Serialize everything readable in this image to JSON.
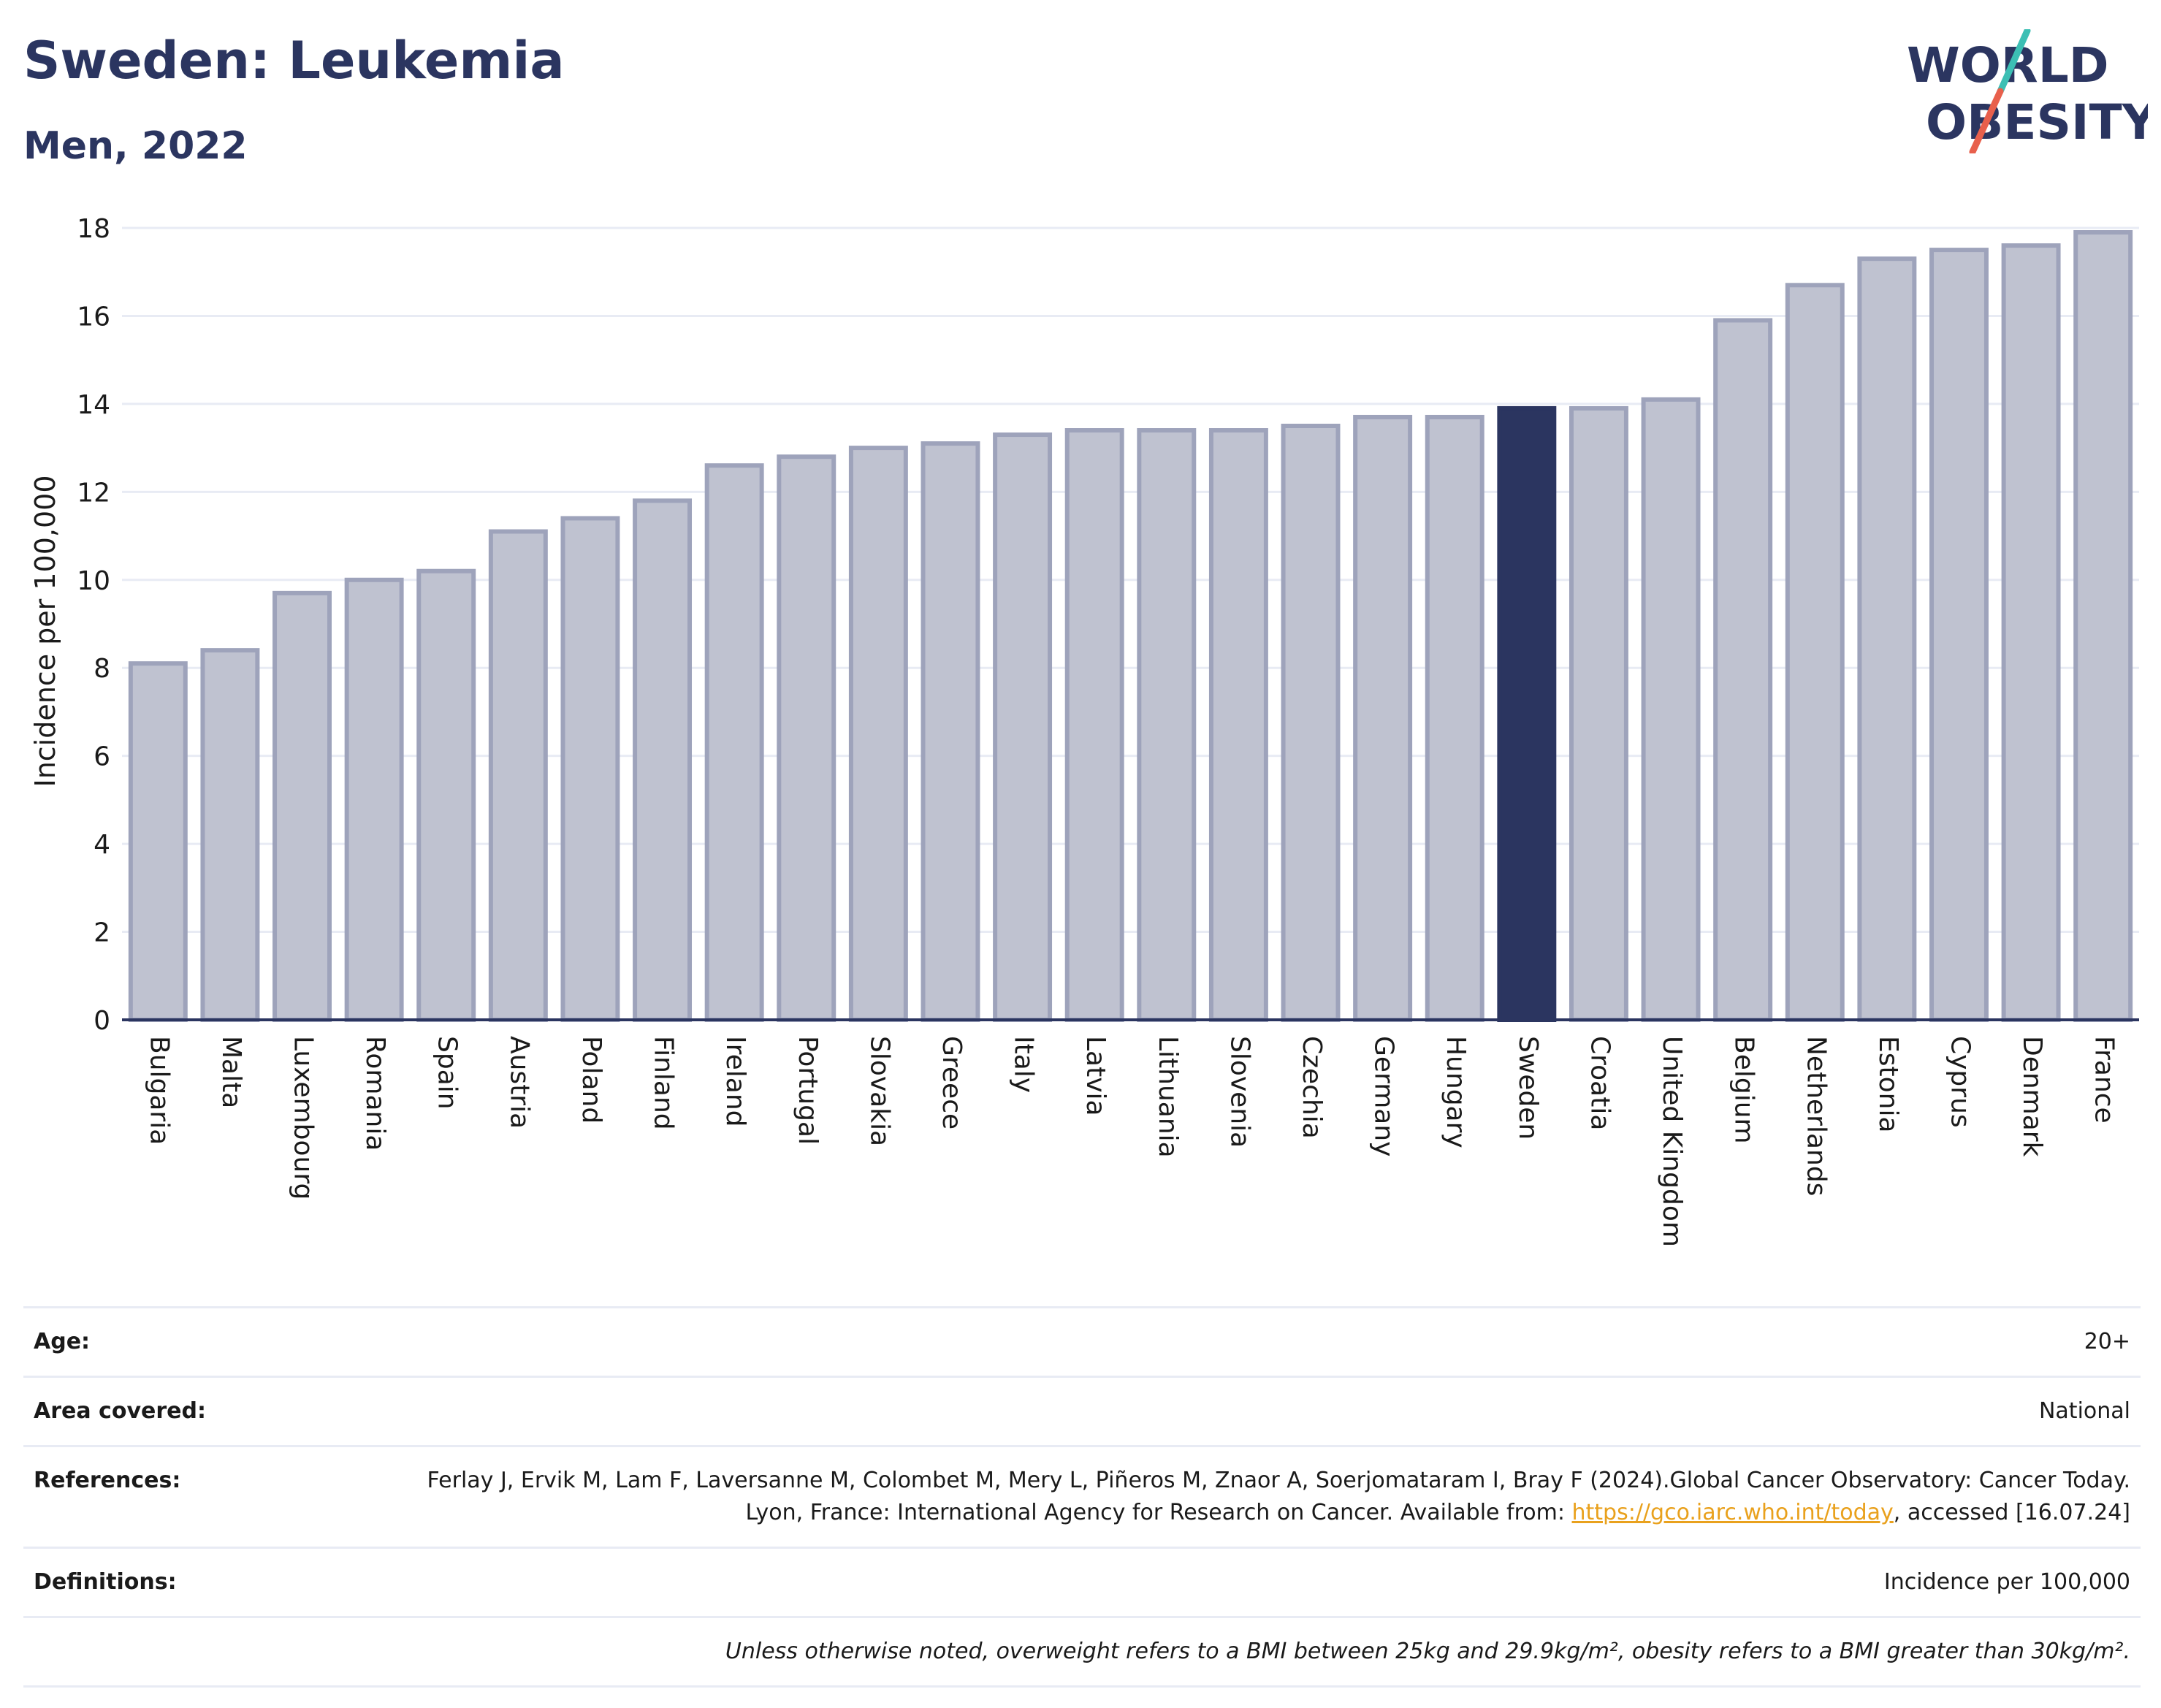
{
  "header": {
    "title": "Sweden: Leukemia",
    "subtitle": "Men, 2022"
  },
  "logo": {
    "line1": "WORLD",
    "line2": "OBESITY",
    "colors": {
      "text": "#2b3560",
      "slash_top": "#3cbfb4",
      "slash_bottom": "#e8604c"
    }
  },
  "chart_data": {
    "type": "bar",
    "ylabel": "Incidence per 100,000",
    "ylim": [
      0,
      18
    ],
    "yticks": [
      0,
      2,
      4,
      6,
      8,
      10,
      12,
      14,
      16,
      18
    ],
    "grid": true,
    "highlight": "Sweden",
    "colors": {
      "bar": "#bfc2d0",
      "bar_edge": "#9ea3bb",
      "highlight": "#2b3560",
      "grid": "#e8ebf4"
    },
    "categories": [
      "Bulgaria",
      "Malta",
      "Luxembourg",
      "Romania",
      "Spain",
      "Austria",
      "Poland",
      "Finland",
      "Ireland",
      "Portugal",
      "Slovakia",
      "Greece",
      "Italy",
      "Latvia",
      "Lithuania",
      "Slovenia",
      "Czechia",
      "Germany",
      "Hungary",
      "Sweden",
      "Croatia",
      "United Kingdom",
      "Belgium",
      "Netherlands",
      "Estonia",
      "Cyprus",
      "Denmark",
      "France"
    ],
    "values": [
      8.1,
      8.4,
      9.7,
      10.0,
      10.2,
      11.1,
      11.4,
      11.8,
      12.6,
      12.8,
      13.0,
      13.1,
      13.3,
      13.4,
      13.4,
      13.4,
      13.5,
      13.7,
      13.7,
      13.9,
      13.9,
      14.1,
      15.9,
      16.7,
      17.3,
      17.5,
      17.6,
      17.9
    ]
  },
  "meta": {
    "age": {
      "label": "Age:",
      "value": "20+"
    },
    "area": {
      "label": "Area covered:",
      "value": "National"
    },
    "references": {
      "label": "References:",
      "text_before": "Ferlay J, Ervik M, Lam F, Laversanne M, Colombet M, Mery L, Piñeros M, Znaor A, Soerjomataram I, Bray F (2024).Global Cancer Observatory: Cancer Today. Lyon, France: International Agency for Research on Cancer. Available from: ",
      "link": "https://gco.iarc.who.int/today",
      "text_after": ", accessed [16.07.24]"
    },
    "definitions": {
      "label": "Definitions:",
      "value": "Incidence per 100,000"
    },
    "note": "Unless otherwise noted, overweight refers to a BMI between 25kg and 29.9kg/m², obesity refers to a BMI greater than 30kg/m²."
  }
}
